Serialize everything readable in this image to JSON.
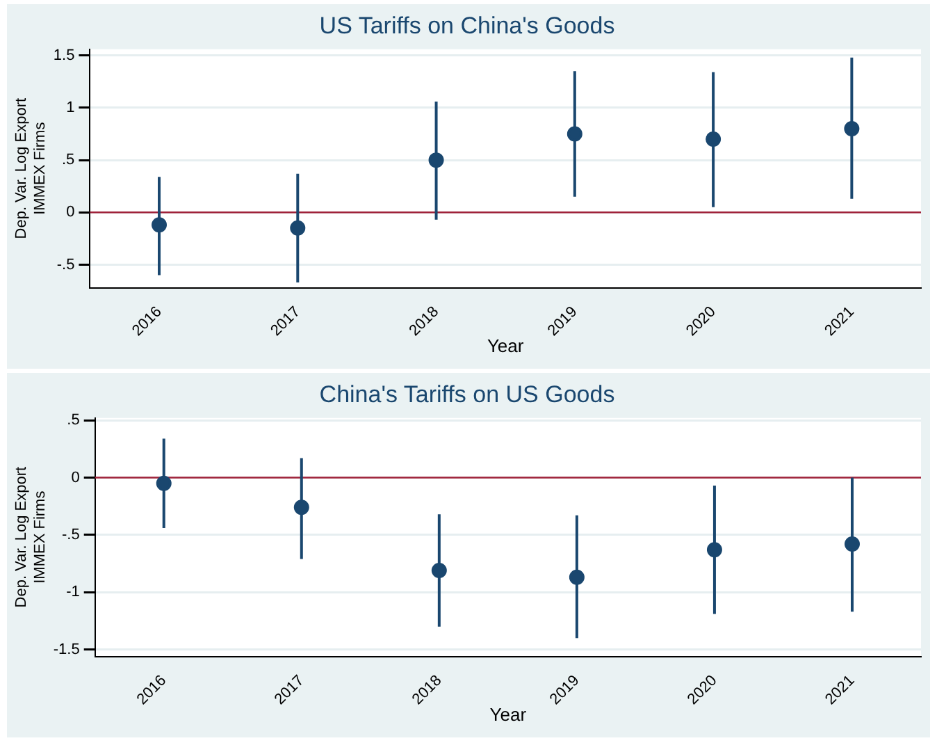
{
  "chart_data": [
    {
      "type": "scatter",
      "title": "US Tariffs on China's Goods",
      "xlabel": "Year",
      "ylabel": "Dep. Var. Log Export\nIMMEX Firms",
      "categories": [
        "2016",
        "2017",
        "2018",
        "2019",
        "2020",
        "2021"
      ],
      "series": [
        {
          "color": "#1a476f",
          "values": [
            -0.12,
            -0.15,
            0.5,
            0.75,
            0.7,
            0.8
          ],
          "errors": [
            [
              -0.6,
              0.34
            ],
            [
              -0.67,
              0.37
            ],
            [
              -0.07,
              1.06
            ],
            [
              0.15,
              1.35
            ],
            [
              0.05,
              1.34
            ],
            [
              0.13,
              1.48
            ]
          ]
        }
      ],
      "ylim": [
        -0.72,
        1.56
      ],
      "yticks": [
        {
          "value": -0.5,
          "label": "-.5"
        },
        0,
        {
          "value": 0.5,
          "label": ".5"
        },
        1,
        1.5
      ],
      "grid": "y",
      "legend": false,
      "marker": "circle",
      "ref_lines": [
        {
          "axis": "y",
          "value": 0,
          "color": "#a0223a"
        }
      ]
    },
    {
      "type": "scatter",
      "title": "China's Tariffs on US Goods",
      "xlabel": "Year",
      "ylabel": "Dep. Var. Log Export\nIMMEX Firms",
      "categories": [
        "2016",
        "2017",
        "2018",
        "2019",
        "2020",
        "2021"
      ],
      "series": [
        {
          "color": "#1a476f",
          "values": [
            -0.05,
            -0.26,
            -0.81,
            -0.87,
            -0.63,
            -0.58
          ],
          "errors": [
            [
              -0.44,
              0.34
            ],
            [
              -0.71,
              0.17
            ],
            [
              -1.3,
              -0.32
            ],
            [
              -1.4,
              -0.33
            ],
            [
              -1.19,
              -0.07
            ],
            [
              -1.17,
              0
            ]
          ]
        }
      ],
      "ylim": [
        -1.56,
        0.52
      ],
      "yticks": [
        {
          "value": -1.5,
          "label": "-1.5"
        },
        -1,
        {
          "value": -0.5,
          "label": "-.5"
        },
        0,
        {
          "value": 0.5,
          "label": ".5"
        }
      ],
      "grid": "y",
      "legend": false,
      "marker": "circle",
      "ref_lines": [
        {
          "axis": "y",
          "value": 0,
          "color": "#a0223a"
        }
      ]
    }
  ]
}
